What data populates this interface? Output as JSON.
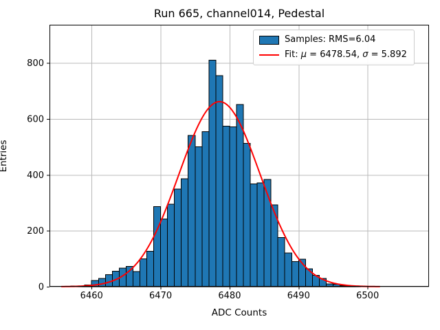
{
  "title": "Run 665, channel014, Pedestal",
  "xlabel": "ADC Counts",
  "ylabel": "Entries",
  "colors": {
    "bar_fill": "#1f77b4",
    "bar_edge": "#000000",
    "fit_line": "#ff0000",
    "grid": "#b8b8b8",
    "spine": "#000000",
    "text": "#000000"
  },
  "legend": {
    "items": [
      {
        "swatch": "patch",
        "color": "#1f77b4",
        "parts": [
          {
            "t": "Samples: RMS=6.04",
            "i": false
          }
        ]
      },
      {
        "swatch": "line",
        "color": "#ff0000",
        "parts": [
          {
            "t": "Fit: ",
            "i": false
          },
          {
            "t": "μ",
            "i": true
          },
          {
            "t": " = 6478.54, ",
            "i": false
          },
          {
            "t": "σ",
            "i": true
          },
          {
            "t": " = 5.892",
            "i": false
          }
        ]
      }
    ]
  },
  "chart_data": {
    "type": "bar",
    "subtype": "histogram-with-gaussian-fit",
    "title": "Run 665, channel014, Pedestal",
    "xlabel": "ADC Counts",
    "ylabel": "Entries",
    "bin_start": 6456,
    "bin_width": 1,
    "counts": [
      1,
      2,
      3,
      6,
      22,
      30,
      43,
      55,
      67,
      73,
      54,
      100,
      127,
      287,
      242,
      295,
      349,
      386,
      541,
      500,
      554,
      810,
      755,
      574,
      572,
      652,
      513,
      368,
      371,
      384,
      293,
      176,
      121,
      90,
      98,
      64,
      41,
      29,
      10,
      8,
      4,
      2,
      1
    ],
    "fit": {
      "mu": 6478.54,
      "sigma": 5.892,
      "amplitude": 662,
      "rms_label": 6.04
    },
    "curve_range": [
      6455.6,
      6501.9
    ],
    "x_ticks": [
      6460,
      6470,
      6480,
      6490,
      6500
    ],
    "y_ticks": [
      0,
      200,
      400,
      600,
      800
    ],
    "xlim": [
      6453.9,
      6508.9
    ],
    "ylim": [
      0,
      937
    ],
    "grid": true,
    "legend_position": "upper right"
  }
}
